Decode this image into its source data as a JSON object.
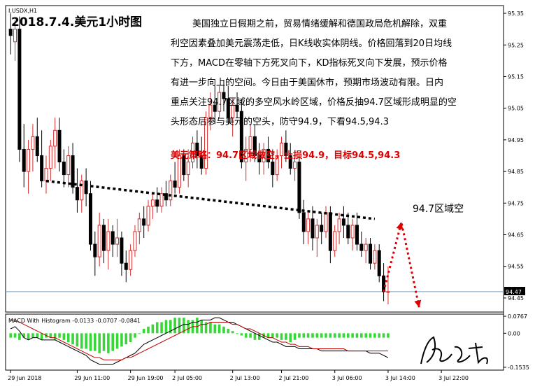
{
  "symbol": "I.USDX,H1",
  "title": "2018.7.4.美元1小时图",
  "analysis_lines": [
    "美国独立日假期之前，贸易情绪缓解和德国政局危机解除，双重",
    "利空因素叠加美元震荡走低，日K线收实体阴线。价格回落到20日均线",
    "下方，MACD在零轴下方死叉向下，KD指标死叉向下发展，预示价格",
    "有进一步向上的空间。今日由于美国休市，预期市场波动有限。日内",
    "重点关注94.7区域的多空风水岭区域，价格反抽94.7区域形成明显的空",
    "头形态后参与美元的空头，防守94.9，下看94.5,94.3"
  ],
  "strategy": "美元策略：94.7区域做空，止损94.9，目标94.5,94.3",
  "zone_label": "94.7区域空",
  "current_price": "94.47",
  "macd_label": "MACD With Histogram -0.0133 -0.0707 -0.0841",
  "colors": {
    "background": "#ffffff",
    "bull_candle": "#d52b2b",
    "bear_candle": "#000000",
    "trendline": "#000000",
    "arrow": "#e00000",
    "strategy_text": "#e00000",
    "macd_hist": "#39d639",
    "macd_line": "#000000",
    "signal_line": "#c00000",
    "price_line": "#7f9fbf"
  },
  "chart_data": {
    "type": "candlestick",
    "price_axis": {
      "ticks": [
        "95.35",
        "95.25",
        "95.15",
        "95.05",
        "94.95",
        "94.85",
        "94.75",
        "94.65",
        "94.55",
        "94.45"
      ],
      "ylim": [
        94.41,
        95.37
      ]
    },
    "macd_axis": {
      "ticks": [
        "0.0767",
        "0.00",
        "-0.1535"
      ],
      "ylim": [
        -0.16,
        0.08
      ]
    },
    "time_labels": [
      "29 Jun 2018",
      "29 Jun 11:00",
      "29 Jun 19:00",
      "2 Jul 05:00",
      "2 Jul 13:00",
      "2 Jul 21:00",
      "3 Jul 06:00",
      "3 Jul 14:00",
      "3 Jul 22:00"
    ],
    "time_label_bar_index": [
      0,
      15,
      27,
      37,
      50,
      61,
      73,
      85,
      97
    ],
    "candles": [
      {
        "o": 95.3,
        "h": 95.35,
        "l": 95.22,
        "c": 95.28
      },
      {
        "o": 95.26,
        "h": 95.33,
        "l": 95.2,
        "c": 95.3
      },
      {
        "o": 95.3,
        "h": 95.34,
        "l": 94.88,
        "c": 94.92
      },
      {
        "o": 94.92,
        "h": 95.0,
        "l": 94.8,
        "c": 94.85
      },
      {
        "o": 94.85,
        "h": 94.95,
        "l": 94.78,
        "c": 94.92
      },
      {
        "o": 94.92,
        "h": 95.0,
        "l": 94.85,
        "c": 94.96
      },
      {
        "o": 94.96,
        "h": 95.02,
        "l": 94.88,
        "c": 94.9
      },
      {
        "o": 94.9,
        "h": 94.98,
        "l": 94.8,
        "c": 94.82
      },
      {
        "o": 94.82,
        "h": 94.9,
        "l": 94.78,
        "c": 94.86
      },
      {
        "o": 94.86,
        "h": 94.95,
        "l": 94.82,
        "c": 94.93
      },
      {
        "o": 94.93,
        "h": 95.02,
        "l": 94.86,
        "c": 94.98
      },
      {
        "o": 94.98,
        "h": 95.02,
        "l": 94.85,
        "c": 94.88
      },
      {
        "o": 94.88,
        "h": 94.92,
        "l": 94.8,
        "c": 94.84
      },
      {
        "o": 94.84,
        "h": 94.93,
        "l": 94.8,
        "c": 94.9
      },
      {
        "o": 94.9,
        "h": 94.94,
        "l": 94.78,
        "c": 94.8
      },
      {
        "o": 94.8,
        "h": 94.86,
        "l": 94.72,
        "c": 94.76
      },
      {
        "o": 94.76,
        "h": 94.84,
        "l": 94.72,
        "c": 94.82
      },
      {
        "o": 94.82,
        "h": 94.86,
        "l": 94.74,
        "c": 94.78
      },
      {
        "o": 94.78,
        "h": 94.82,
        "l": 94.6,
        "c": 94.62
      },
      {
        "o": 94.62,
        "h": 94.66,
        "l": 94.52,
        "c": 94.58
      },
      {
        "o": 94.58,
        "h": 94.72,
        "l": 94.55,
        "c": 94.68
      },
      {
        "o": 94.68,
        "h": 94.7,
        "l": 94.56,
        "c": 94.6
      },
      {
        "o": 94.6,
        "h": 94.7,
        "l": 94.54,
        "c": 94.66
      },
      {
        "o": 94.66,
        "h": 94.68,
        "l": 94.58,
        "c": 94.62
      },
      {
        "o": 94.62,
        "h": 94.7,
        "l": 94.58,
        "c": 94.64
      },
      {
        "o": 94.64,
        "h": 94.66,
        "l": 94.52,
        "c": 94.56
      },
      {
        "o": 94.56,
        "h": 94.6,
        "l": 94.5,
        "c": 94.54
      },
      {
        "o": 94.54,
        "h": 94.62,
        "l": 94.52,
        "c": 94.6
      },
      {
        "o": 94.6,
        "h": 94.68,
        "l": 94.58,
        "c": 94.66
      },
      {
        "o": 94.66,
        "h": 94.72,
        "l": 94.62,
        "c": 94.7
      },
      {
        "o": 94.7,
        "h": 94.74,
        "l": 94.64,
        "c": 94.68
      },
      {
        "o": 94.68,
        "h": 94.76,
        "l": 94.66,
        "c": 94.74
      },
      {
        "o": 94.74,
        "h": 94.78,
        "l": 94.7,
        "c": 94.76
      },
      {
        "o": 94.76,
        "h": 94.8,
        "l": 94.72,
        "c": 94.74
      },
      {
        "o": 94.74,
        "h": 94.8,
        "l": 94.72,
        "c": 94.78
      },
      {
        "o": 94.78,
        "h": 94.82,
        "l": 94.74,
        "c": 94.76
      },
      {
        "o": 94.76,
        "h": 94.84,
        "l": 94.74,
        "c": 94.82
      },
      {
        "o": 94.82,
        "h": 94.88,
        "l": 94.78,
        "c": 94.8
      },
      {
        "o": 94.8,
        "h": 94.92,
        "l": 94.78,
        "c": 94.9
      },
      {
        "o": 94.9,
        "h": 94.92,
        "l": 94.82,
        "c": 94.84
      },
      {
        "o": 94.84,
        "h": 94.92,
        "l": 94.8,
        "c": 94.88
      },
      {
        "o": 94.88,
        "h": 94.96,
        "l": 94.86,
        "c": 94.94
      },
      {
        "o": 94.94,
        "h": 94.98,
        "l": 94.86,
        "c": 94.9
      },
      {
        "o": 94.9,
        "h": 94.96,
        "l": 94.84,
        "c": 94.86
      },
      {
        "o": 94.86,
        "h": 95.04,
        "l": 94.84,
        "c": 95.02
      },
      {
        "o": 95.02,
        "h": 95.1,
        "l": 94.98,
        "c": 95.06
      },
      {
        "o": 95.06,
        "h": 95.12,
        "l": 95.0,
        "c": 95.04
      },
      {
        "o": 95.04,
        "h": 95.12,
        "l": 95.02,
        "c": 95.1
      },
      {
        "o": 95.1,
        "h": 95.14,
        "l": 95.04,
        "c": 95.08
      },
      {
        "o": 95.08,
        "h": 95.12,
        "l": 95.0,
        "c": 95.02
      },
      {
        "o": 95.02,
        "h": 95.08,
        "l": 94.96,
        "c": 95.06
      },
      {
        "o": 95.06,
        "h": 95.1,
        "l": 95.02,
        "c": 95.04
      },
      {
        "o": 95.04,
        "h": 95.08,
        "l": 94.86,
        "c": 94.88
      },
      {
        "o": 94.88,
        "h": 94.96,
        "l": 94.82,
        "c": 94.92
      },
      {
        "o": 94.92,
        "h": 95.0,
        "l": 94.88,
        "c": 94.96
      },
      {
        "o": 94.96,
        "h": 95.0,
        "l": 94.88,
        "c": 94.9
      },
      {
        "o": 94.9,
        "h": 94.94,
        "l": 94.84,
        "c": 94.88
      },
      {
        "o": 94.88,
        "h": 94.94,
        "l": 94.84,
        "c": 94.92
      },
      {
        "o": 94.92,
        "h": 94.96,
        "l": 94.86,
        "c": 94.88
      },
      {
        "o": 94.88,
        "h": 94.92,
        "l": 94.8,
        "c": 94.84
      },
      {
        "o": 94.84,
        "h": 94.92,
        "l": 94.82,
        "c": 94.9
      },
      {
        "o": 94.9,
        "h": 94.96,
        "l": 94.86,
        "c": 94.94
      },
      {
        "o": 94.94,
        "h": 94.98,
        "l": 94.88,
        "c": 94.9
      },
      {
        "o": 94.9,
        "h": 94.94,
        "l": 94.84,
        "c": 94.86
      },
      {
        "o": 94.86,
        "h": 94.9,
        "l": 94.82,
        "c": 94.88
      },
      {
        "o": 94.88,
        "h": 94.9,
        "l": 94.7,
        "c": 94.72
      },
      {
        "o": 94.72,
        "h": 94.76,
        "l": 94.62,
        "c": 94.66
      },
      {
        "o": 94.66,
        "h": 94.72,
        "l": 94.62,
        "c": 94.7
      },
      {
        "o": 94.7,
        "h": 94.74,
        "l": 94.6,
        "c": 94.64
      },
      {
        "o": 94.64,
        "h": 94.7,
        "l": 94.58,
        "c": 94.68
      },
      {
        "o": 94.68,
        "h": 94.72,
        "l": 94.62,
        "c": 94.66
      },
      {
        "o": 94.66,
        "h": 94.74,
        "l": 94.64,
        "c": 94.72
      },
      {
        "o": 94.72,
        "h": 94.74,
        "l": 94.56,
        "c": 94.6
      },
      {
        "o": 94.6,
        "h": 94.68,
        "l": 94.58,
        "c": 94.66
      },
      {
        "o": 94.66,
        "h": 94.72,
        "l": 94.62,
        "c": 94.7
      },
      {
        "o": 94.7,
        "h": 94.74,
        "l": 94.64,
        "c": 94.68
      },
      {
        "o": 94.68,
        "h": 94.72,
        "l": 94.62,
        "c": 94.64
      },
      {
        "o": 94.64,
        "h": 94.7,
        "l": 94.6,
        "c": 94.68
      },
      {
        "o": 94.68,
        "h": 94.72,
        "l": 94.6,
        "c": 94.62
      },
      {
        "o": 94.62,
        "h": 94.66,
        "l": 94.58,
        "c": 94.6
      },
      {
        "o": 94.6,
        "h": 94.64,
        "l": 94.56,
        "c": 94.62
      },
      {
        "o": 94.62,
        "h": 94.64,
        "l": 94.54,
        "c": 94.56
      },
      {
        "o": 94.56,
        "h": 94.62,
        "l": 94.54,
        "c": 94.6
      },
      {
        "o": 94.6,
        "h": 94.62,
        "l": 94.5,
        "c": 94.52
      },
      {
        "o": 94.52,
        "h": 94.56,
        "l": 94.44,
        "c": 94.47
      },
      {
        "o": 94.47,
        "h": 94.55,
        "l": 94.43,
        "c": 94.47
      }
    ],
    "trendline": {
      "from": {
        "bar": 8,
        "price": 94.82
      },
      "to": {
        "bar": 82,
        "price": 94.7
      }
    },
    "arrow_path": [
      {
        "bar": 84,
        "price": 94.47
      },
      {
        "bar": 88,
        "price": 94.69
      },
      {
        "bar": 92,
        "price": 94.42
      }
    ],
    "macd": {
      "histogram": [
        -0.02,
        -0.02,
        -0.03,
        -0.02,
        -0.03,
        -0.02,
        -0.02,
        -0.03,
        -0.02,
        -0.02,
        -0.03,
        -0.02,
        -0.03,
        -0.04,
        -0.05,
        -0.06,
        -0.07,
        -0.07,
        -0.08,
        -0.08,
        -0.09,
        -0.08,
        -0.09,
        -0.08,
        -0.07,
        -0.06,
        -0.05,
        -0.04,
        -0.02,
        0.0,
        0.02,
        0.03,
        0.04,
        0.05,
        0.05,
        0.06,
        0.06,
        0.07,
        0.07,
        0.07,
        0.06,
        0.06,
        0.07,
        0.06,
        0.05,
        0.05,
        0.04,
        0.04,
        0.03,
        0.02,
        0.01,
        0.0,
        -0.01,
        -0.02,
        -0.02,
        -0.03,
        -0.03,
        -0.02,
        -0.02,
        -0.02,
        -0.02,
        -0.03,
        -0.03,
        -0.04,
        -0.03,
        -0.02,
        -0.02,
        -0.02,
        -0.02,
        -0.02,
        -0.02,
        -0.02,
        -0.02,
        -0.02,
        -0.02,
        -0.02,
        -0.02,
        -0.02,
        -0.02,
        -0.02,
        -0.02,
        -0.02,
        -0.02,
        -0.02,
        -0.02,
        -0.02
      ],
      "macd_line": [
        0.02,
        0.03,
        0.01,
        -0.02,
        -0.03,
        -0.02,
        -0.02,
        -0.03,
        -0.03,
        -0.03,
        -0.03,
        -0.04,
        -0.05,
        -0.06,
        -0.07,
        -0.08,
        -0.09,
        -0.1,
        -0.12,
        -0.13,
        -0.14,
        -0.14,
        -0.14,
        -0.14,
        -0.13,
        -0.12,
        -0.11,
        -0.1,
        -0.09,
        -0.07,
        -0.05,
        -0.04,
        -0.03,
        -0.02,
        -0.01,
        0.0,
        0.01,
        0.02,
        0.03,
        0.04,
        0.04,
        0.05,
        0.05,
        0.06,
        0.06,
        0.06,
        0.07,
        0.07,
        0.06,
        0.05,
        0.05,
        0.04,
        0.03,
        0.02,
        0.01,
        0.0,
        -0.01,
        -0.02,
        -0.03,
        -0.04,
        -0.04,
        -0.05,
        -0.06,
        -0.06,
        -0.06,
        -0.07,
        -0.07,
        -0.07,
        -0.07,
        -0.07,
        -0.08,
        -0.08,
        -0.08,
        -0.08,
        -0.08,
        -0.08,
        -0.08,
        -0.08,
        -0.08,
        -0.08,
        -0.08,
        -0.09,
        -0.09,
        -0.09,
        -0.1,
        -0.11
      ],
      "signal_line": [
        0.06,
        0.06,
        0.05,
        0.04,
        0.03,
        0.02,
        0.01,
        0.0,
        -0.01,
        -0.02,
        -0.02,
        -0.03,
        -0.04,
        -0.05,
        -0.06,
        -0.07,
        -0.08,
        -0.09,
        -0.1,
        -0.11,
        -0.11,
        -0.12,
        -0.12,
        -0.12,
        -0.12,
        -0.12,
        -0.11,
        -0.11,
        -0.1,
        -0.09,
        -0.08,
        -0.07,
        -0.06,
        -0.05,
        -0.04,
        -0.03,
        -0.02,
        -0.01,
        0.0,
        0.01,
        0.02,
        0.03,
        0.03,
        0.04,
        0.04,
        0.05,
        0.05,
        0.05,
        0.05,
        0.05,
        0.04,
        0.04,
        0.03,
        0.02,
        0.02,
        0.01,
        0.0,
        -0.01,
        -0.02,
        -0.02,
        -0.03,
        -0.04,
        -0.04,
        -0.05,
        -0.05,
        -0.06,
        -0.06,
        -0.06,
        -0.07,
        -0.07,
        -0.07,
        -0.07,
        -0.07,
        -0.07,
        -0.07,
        -0.07,
        -0.08,
        -0.08,
        -0.08,
        -0.08,
        -0.08,
        -0.08,
        -0.08,
        -0.08,
        -0.08,
        -0.08
      ]
    }
  }
}
